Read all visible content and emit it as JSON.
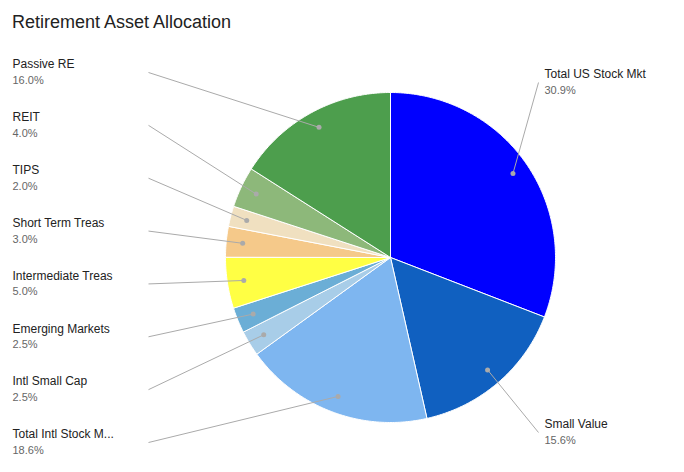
{
  "chart_data": {
    "type": "pie",
    "title": "Retirement Asset Allocation",
    "categories": [
      "Total US Stock Mkt",
      "Small Value",
      "Total Intl Stock M...",
      "Intl Small Cap",
      "Emerging Markets",
      "Intermediate Treas",
      "Short Term Treas",
      "TIPS",
      "REIT",
      "Passive RE"
    ],
    "values": [
      30.9,
      15.6,
      18.6,
      2.5,
      2.5,
      5.0,
      3.0,
      2.0,
      4.0,
      16.0
    ],
    "value_labels": [
      "30.9%",
      "15.6%",
      "18.6%",
      "2.5%",
      "2.5%",
      "5.0%",
      "3.0%",
      "2.0%",
      "4.0%",
      "16.0%"
    ],
    "colors": [
      "#0000FF",
      "#1060C0",
      "#7EB6F0",
      "#A8CDE8",
      "#6BAED6",
      "#FFFF44",
      "#F5C98A",
      "#F0E0C0",
      "#8DB87A",
      "#4D9E4D"
    ],
    "data_labels": true
  }
}
